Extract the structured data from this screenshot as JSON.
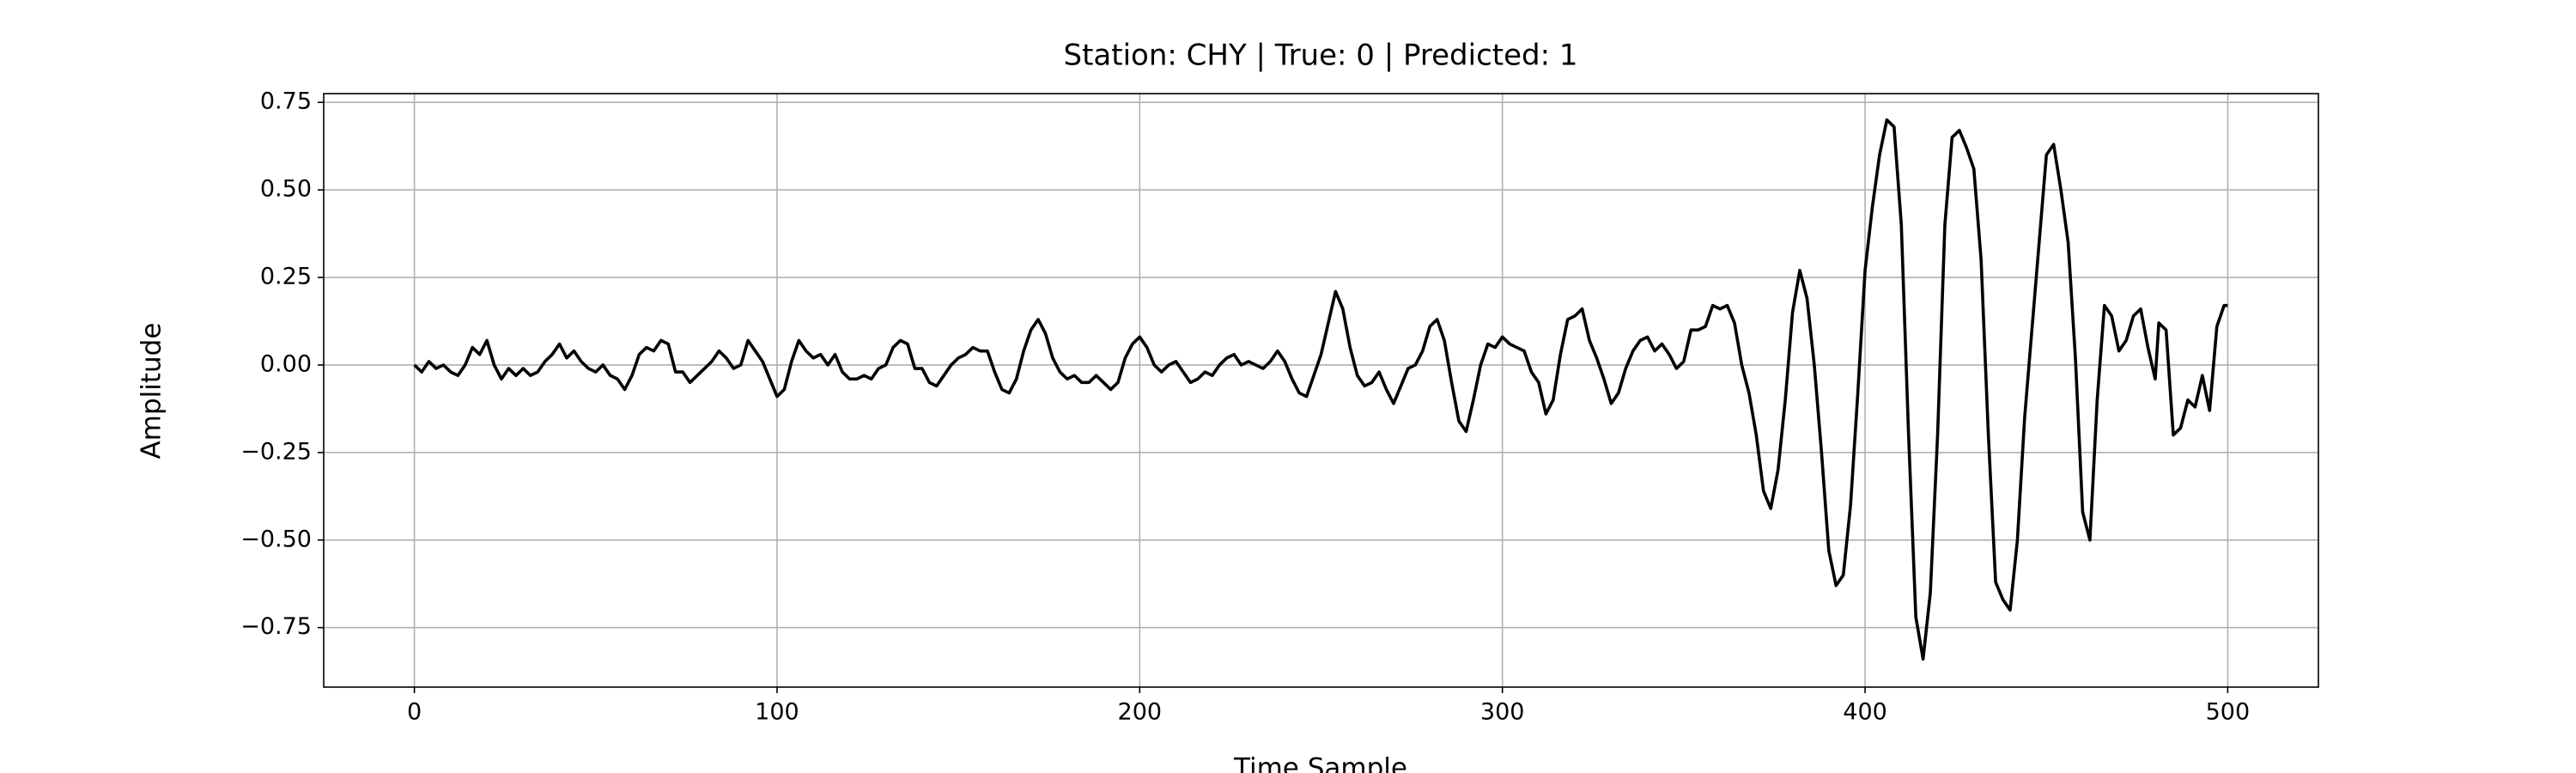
{
  "chart_data": {
    "type": "line",
    "title": "Station: CHY | True: 0 | Predicted: 1",
    "xlabel": "Time Sample",
    "ylabel": "Amplitude",
    "xlim": [
      -25,
      525
    ],
    "ylim": [
      -0.92,
      0.775
    ],
    "xticks": [
      0,
      100,
      200,
      300,
      400,
      500
    ],
    "yticks": [
      {
        "value": -0.75,
        "label": "−0.75"
      },
      {
        "value": -0.5,
        "label": "−0.50"
      },
      {
        "value": -0.25,
        "label": "−0.25"
      },
      {
        "value": 0,
        "label": "0.00"
      },
      0.25,
      {
        "value": 0.5,
        "label": "0.50"
      },
      0.75
    ],
    "grid": true,
    "x": [
      0,
      2,
      4,
      6,
      8,
      10,
      12,
      14,
      16,
      18,
      20,
      22,
      24,
      26,
      28,
      30,
      32,
      34,
      36,
      38,
      40,
      42,
      44,
      46,
      48,
      50,
      52,
      54,
      56,
      58,
      60,
      62,
      64,
      66,
      68,
      70,
      72,
      74,
      76,
      78,
      80,
      82,
      84,
      86,
      88,
      90,
      92,
      94,
      96,
      98,
      100,
      102,
      104,
      106,
      108,
      110,
      112,
      114,
      116,
      118,
      120,
      122,
      124,
      126,
      128,
      130,
      132,
      134,
      136,
      138,
      140,
      142,
      144,
      146,
      148,
      150,
      152,
      154,
      156,
      158,
      160,
      162,
      164,
      166,
      168,
      170,
      172,
      174,
      176,
      178,
      180,
      182,
      184,
      186,
      188,
      190,
      192,
      194,
      196,
      198,
      200,
      202,
      204,
      206,
      208,
      210,
      212,
      214,
      216,
      218,
      220,
      222,
      224,
      226,
      228,
      230,
      232,
      234,
      236,
      238,
      240,
      242,
      244,
      246,
      248,
      250,
      252,
      254,
      256,
      258,
      260,
      262,
      264,
      266,
      268,
      270,
      272,
      274,
      276,
      278,
      280,
      282,
      284,
      286,
      288,
      290,
      292,
      294,
      296,
      298,
      300,
      302,
      304,
      306,
      308,
      310,
      312,
      314,
      316,
      318,
      320,
      322,
      324,
      326,
      328,
      330,
      332,
      334,
      336,
      338,
      340,
      342,
      344,
      346,
      348,
      350,
      352,
      354,
      356,
      358,
      360,
      362,
      364,
      366,
      368,
      370,
      372,
      374,
      376,
      378,
      380,
      382,
      384,
      386,
      388,
      390,
      392,
      394,
      396,
      398,
      400,
      402,
      404,
      406,
      408,
      410,
      412,
      414,
      416,
      418,
      420,
      422,
      424,
      426,
      428,
      430,
      432,
      434,
      436,
      438,
      440,
      442,
      444,
      446,
      448,
      450,
      452,
      454,
      456,
      458,
      460,
      462,
      464,
      466,
      468,
      470,
      472,
      474,
      476,
      478,
      480,
      481,
      483,
      485,
      487,
      489,
      491,
      493,
      495,
      497,
      499,
      500
    ],
    "series": [
      {
        "color": "#000000",
        "values": [
          0,
          -0.02,
          0.01,
          -0.01,
          0,
          -0.02,
          -0.03,
          0,
          0.05,
          0.03,
          0.07,
          0,
          -0.04,
          -0.01,
          -0.03,
          -0.01,
          -0.03,
          -0.02,
          0.01,
          0.03,
          0.06,
          0.02,
          0.04,
          0.01,
          -0.01,
          -0.02,
          0,
          -0.03,
          -0.04,
          -0.07,
          -0.03,
          0.03,
          0.05,
          0.04,
          0.07,
          0.06,
          -0.02,
          -0.02,
          -0.05,
          -0.03,
          -0.01,
          0.01,
          0.04,
          0.02,
          -0.01,
          0,
          0.07,
          0.04,
          0.01,
          -0.04,
          -0.09,
          -0.07,
          0.01,
          0.07,
          0.04,
          0.02,
          0.03,
          0,
          0.03,
          -0.02,
          -0.04,
          -0.04,
          -0.03,
          -0.04,
          -0.01,
          0,
          0.05,
          0.07,
          0.06,
          -0.01,
          -0.01,
          -0.05,
          -0.06,
          -0.03,
          0,
          0.02,
          0.03,
          0.05,
          0.04,
          0.04,
          -0.02,
          -0.07,
          -0.08,
          -0.04,
          0.04,
          0.1,
          0.13,
          0.09,
          0.02,
          -0.02,
          -0.04,
          -0.03,
          -0.05,
          -0.05,
          -0.03,
          -0.05,
          -0.07,
          -0.05,
          0.02,
          0.06,
          0.08,
          0.05,
          0,
          -0.02,
          0,
          0.01,
          -0.02,
          -0.05,
          -0.04,
          -0.02,
          -0.03,
          0,
          0.02,
          0.03,
          0,
          0.01,
          0,
          -0.01,
          0.01,
          0.04,
          0.01,
          -0.04,
          -0.08,
          -0.09,
          -0.03,
          0.03,
          0.12,
          0.21,
          0.16,
          0.05,
          -0.03,
          -0.06,
          -0.05,
          -0.02,
          -0.07,
          -0.11,
          -0.06,
          -0.01,
          0,
          0.04,
          0.11,
          0.13,
          0.07,
          -0.05,
          -0.16,
          -0.19,
          -0.1,
          0,
          0.06,
          0.05,
          0.08,
          0.06,
          0.05,
          0.04,
          -0.02,
          -0.05,
          -0.14,
          -0.1,
          0.03,
          0.13,
          0.14,
          0.16,
          0.07,
          0.02,
          -0.04,
          -0.11,
          -0.08,
          -0.01,
          0.04,
          0.07,
          0.08,
          0.04,
          0.06,
          0.03,
          -0.01,
          0.01,
          0.1,
          0.1,
          0.11,
          0.17,
          0.16,
          0.17,
          0.12,
          0,
          -0.08,
          -0.2,
          -0.36,
          -0.41,
          -0.3,
          -0.1,
          0.15,
          0.27,
          0.19,
          0,
          -0.25,
          -0.53,
          -0.63,
          -0.6,
          -0.4,
          -0.08,
          0.27,
          0.45,
          0.6,
          0.7,
          0.68,
          0.4,
          -0.2,
          -0.72,
          -0.84,
          -0.65,
          -0.2,
          0.4,
          0.65,
          0.67,
          0.62,
          0.56,
          0.3,
          -0.2,
          -0.62,
          -0.67,
          -0.7,
          -0.5,
          -0.15,
          0.1,
          0.35,
          0.6,
          0.63,
          0.5,
          0.35,
          0.02,
          -0.42,
          -0.5,
          -0.1,
          0.17,
          0.14,
          0.04,
          0.07,
          0.14,
          0.16,
          0.05,
          -0.04,
          0.12,
          0.1,
          -0.2,
          -0.18,
          -0.1,
          -0.12,
          -0.03,
          -0.13,
          0.11,
          0.17,
          0.17
        ]
      }
    ]
  }
}
